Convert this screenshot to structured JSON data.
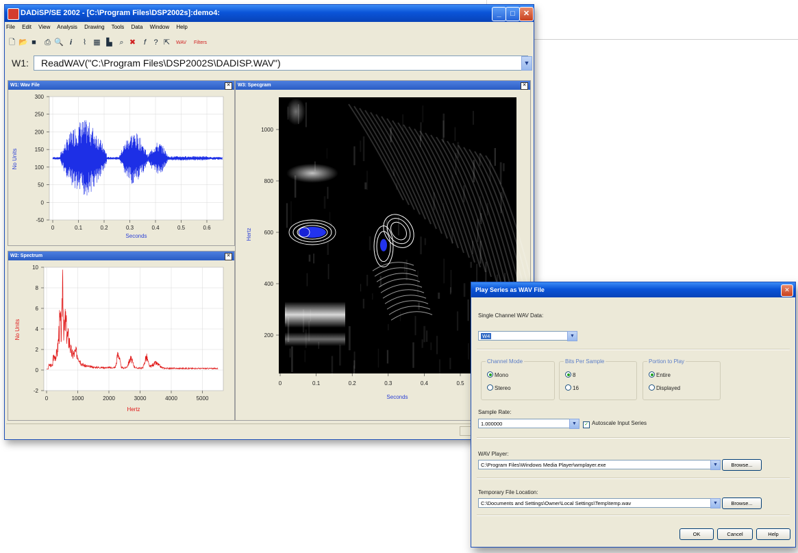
{
  "app": {
    "title": "DADiSP/SE 2002 - [C:\\Program Files\\DSP2002s]:demo4:",
    "menu": [
      "File",
      "Edit",
      "View",
      "Analysis",
      "Drawing",
      "Tools",
      "Data",
      "Window",
      "Help"
    ],
    "toolbar_text": [
      "WAV",
      "Filters"
    ],
    "command": {
      "label": "W1:",
      "value": "ReadWAV(\"C:\\Program Files\\DSP2002S\\DADISP.WAV\")"
    }
  },
  "colors": {
    "title_bar": "#0a54d8",
    "wave": "#1d2fe6",
    "spectrum": "#e01818",
    "spectro_bg": "#000000",
    "axis_label_blue": "#2a3fd6",
    "axis_label_red": "#e01818"
  },
  "w1": {
    "title": "W1: Wav File",
    "ylabel": "No Units",
    "xlabel": "Seconds",
    "yticks": [
      "300",
      "250",
      "200",
      "150",
      "100",
      "50",
      "0",
      "-50"
    ],
    "xticks": [
      "0",
      "0.1",
      "0.2",
      "0.3",
      "0.4",
      "0.5",
      "0.6"
    ]
  },
  "w2": {
    "title": "W2: Spectrum",
    "ylabel": "No Units",
    "xlabel": "Hertz",
    "yticks": [
      "10",
      "8",
      "6",
      "4",
      "2",
      "0",
      "-2"
    ],
    "xticks": [
      "0",
      "1000",
      "2000",
      "3000",
      "4000",
      "5000"
    ]
  },
  "w3": {
    "title": "W3: Specgram",
    "ylabel": "Hertz",
    "xlabel": "Seconds",
    "yticks": [
      "1000",
      "800",
      "600",
      "400",
      "200"
    ],
    "xticks": [
      "0",
      "0.1",
      "0.2",
      "0.3",
      "0.4",
      "0.5"
    ]
  },
  "dialog": {
    "title": "Play Series as WAV File",
    "single_channel_label": "Single Channel WAV Data:",
    "single_channel_value": "W4",
    "channel_mode": {
      "label": "Channel Mode",
      "options": [
        "Mono",
        "Stereo"
      ],
      "selected": "Mono"
    },
    "bits_per_sample": {
      "label": "Bits Per Sample",
      "options": [
        "8",
        "16"
      ],
      "selected": "8"
    },
    "portion": {
      "label": "Portion to Play",
      "options": [
        "Entire",
        "Displayed"
      ],
      "selected": "Entire"
    },
    "sample_rate_label": "Sample Rate:",
    "sample_rate_value": "1.000000",
    "autoscale_label": "Autoscale Input Series",
    "autoscale_checked": true,
    "wav_player_label": "WAV Player:",
    "wav_player_value": "C:\\Program Files\\Windows Media Player\\wmplayer.exe",
    "temp_label": "Temporary File Location:",
    "temp_value": "C:\\Documents and Settings\\Owner\\Local Settings\\Temp\\temp.wav",
    "browse": "Browse...",
    "ok": "OK",
    "cancel": "Cancel",
    "help": "Help"
  }
}
